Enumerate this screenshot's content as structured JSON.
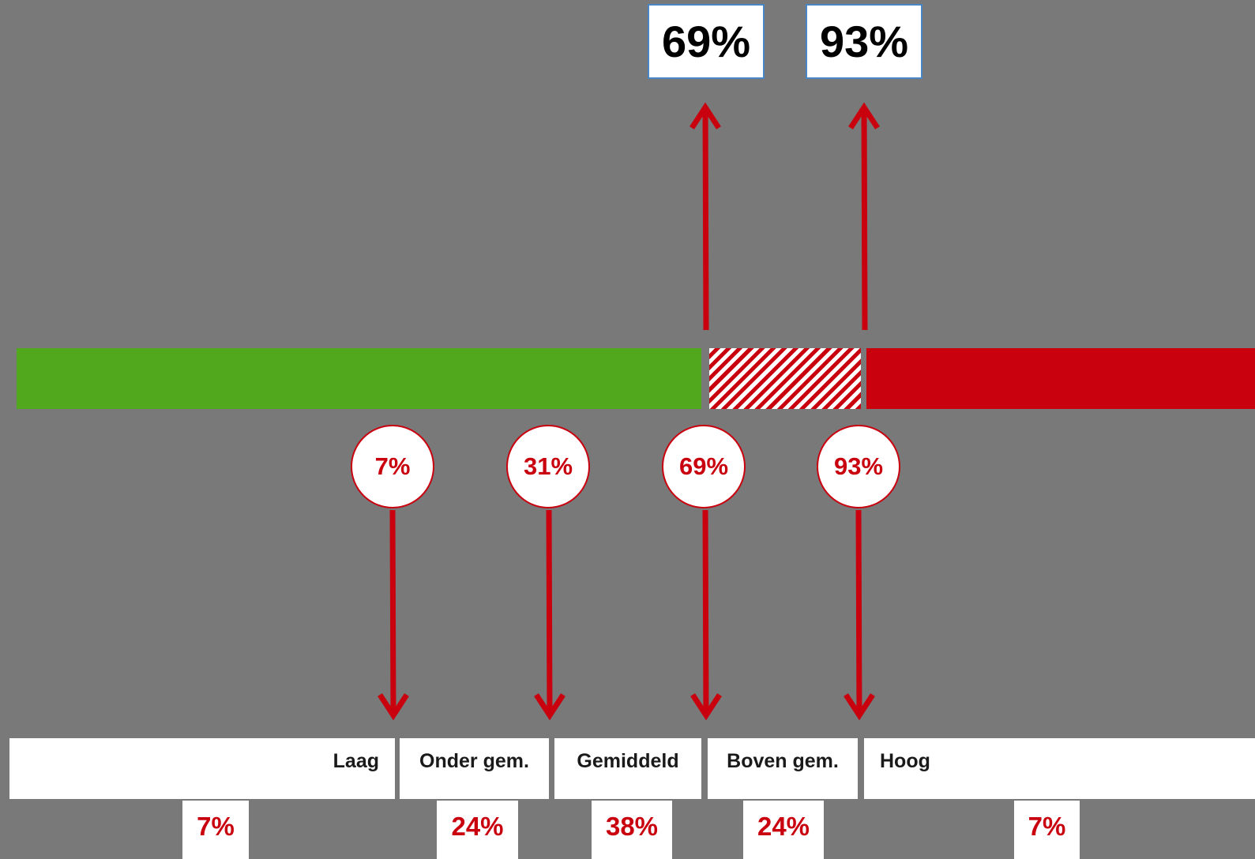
{
  "colors": {
    "background": "#797979",
    "green": "#52a81c",
    "red": "#c9000e",
    "white": "#ffffff",
    "box_border": "#4a86c5"
  },
  "top_values": [
    "69%",
    "93%"
  ],
  "bar": {
    "segments": [
      {
        "name": "green",
        "fill": "solid",
        "color": "#52a81c"
      },
      {
        "name": "hatched",
        "fill": "striped",
        "color": "#c9000e"
      },
      {
        "name": "red",
        "fill": "solid",
        "color": "#c9000e"
      }
    ]
  },
  "thresholds": [
    "7%",
    "31%",
    "69%",
    "93%"
  ],
  "categories": [
    "Laag",
    "Onder gem.",
    "Gemiddeld",
    "Boven gem.",
    "Hoog"
  ],
  "category_percentages": [
    "7%",
    "24%",
    "38%",
    "24%",
    "7%"
  ]
}
